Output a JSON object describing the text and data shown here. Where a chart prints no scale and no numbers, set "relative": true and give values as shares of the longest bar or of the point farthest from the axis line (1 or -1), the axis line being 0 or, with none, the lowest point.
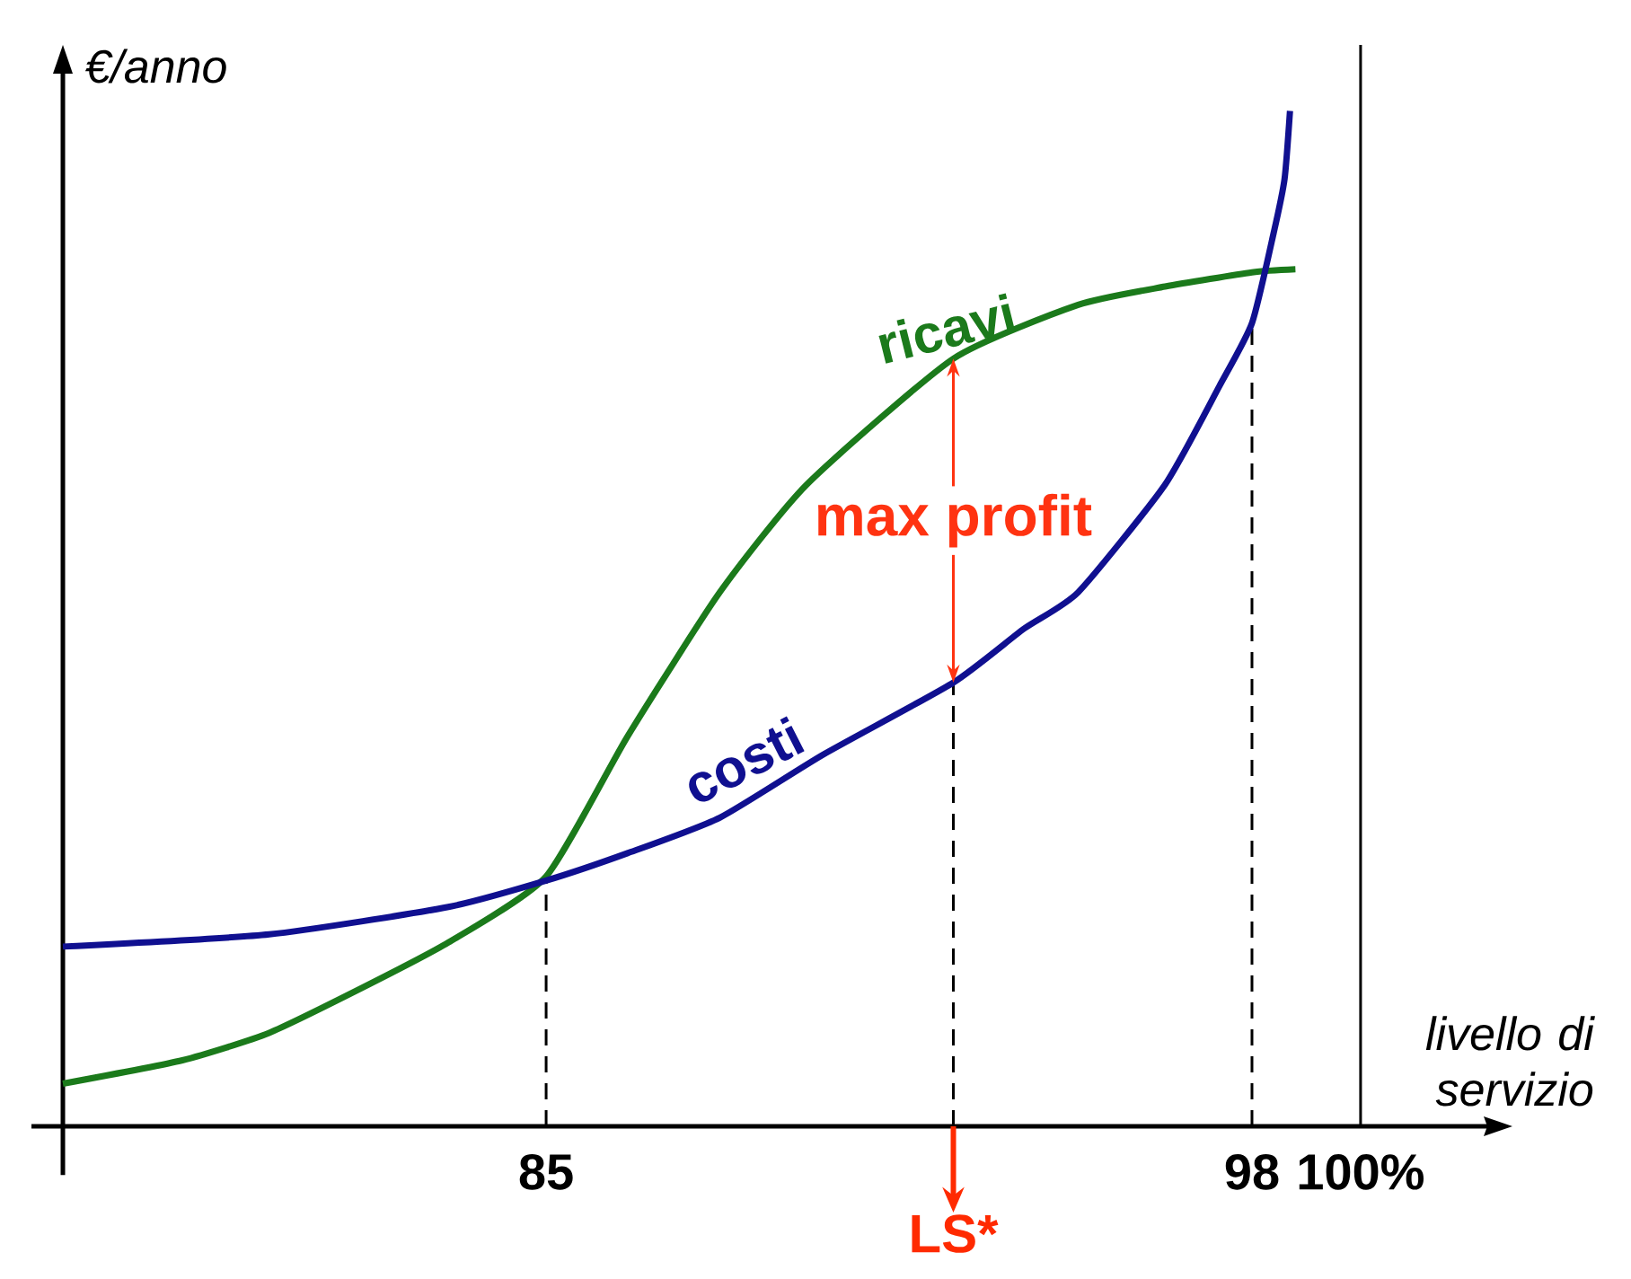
{
  "chart_data": {
    "type": "line",
    "relative": true,
    "ylabel": "€/anno",
    "xlabel": "livello di servizio",
    "xlim": [
      76.1,
      102.4
    ],
    "xticks": [
      85,
      98,
      {
        "value": 100,
        "label": "100%"
      }
    ],
    "series": [
      {
        "name": "ricavi",
        "color": "#1b7a1b",
        "x": [
          76.1,
          78.3,
          79.9,
          81.6,
          83.2,
          85,
          86.5,
          88.2,
          89.8,
          92.5,
          94.8,
          96.4,
          98,
          98.8
        ],
        "values": [
          0.042,
          0.065,
          0.092,
          0.136,
          0.181,
          0.246,
          0.384,
          0.526,
          0.632,
          0.756,
          0.809,
          0.827,
          0.841,
          0.844
        ]
      },
      {
        "name": "costi",
        "color": "#101090",
        "x": [
          76.1,
          79.9,
          83.2,
          85,
          86.5,
          88.2,
          90.1,
          92.5,
          93.8,
          94.8,
          96.4,
          97.4,
          98,
          98.4,
          98.6,
          98.7
        ],
        "values": [
          0.177,
          0.189,
          0.216,
          0.242,
          0.269,
          0.304,
          0.366,
          0.437,
          0.49,
          0.526,
          0.632,
          0.729,
          0.791,
          0.88,
          0.933,
          1
        ]
      }
    ],
    "ref_lines": [
      {
        "axis": "x",
        "value": 85,
        "line_style": "dashed"
      },
      {
        "axis": "x",
        "value": 98,
        "line_style": "dashed"
      },
      {
        "axis": "x",
        "value": 92.5,
        "label": "LS*",
        "line_style": "dashed"
      },
      {
        "axis": "x",
        "value": 100,
        "line_style": "solid"
      }
    ],
    "annotations": [
      "max profit"
    ],
    "legend": false,
    "marker": "none",
    "line_style": "solid"
  }
}
